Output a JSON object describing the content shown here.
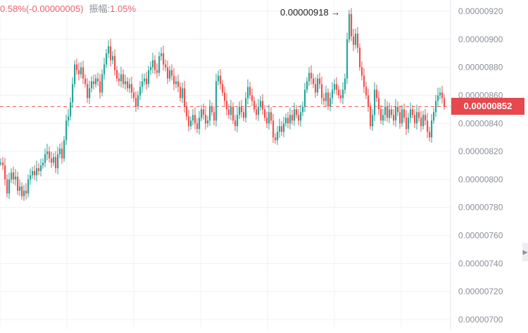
{
  "header": {
    "change_text": "0.58%(-0.00000005)",
    "amplitude_label": "振幅:",
    "amplitude_value": "1.05%"
  },
  "price_tag": {
    "label": "0.00000852",
    "value": 8.52e-06
  },
  "high_annotation": {
    "label": "0.00000918 →",
    "value": 9.18e-06
  },
  "colors": {
    "up": "#26a69a",
    "down": "#ef5350",
    "price_line": "#ef5350",
    "grid": "#eef0f3",
    "axis_text": "#8a8f99"
  },
  "icons": {
    "scroll": "chevron-right-icon"
  },
  "chart_data": {
    "type": "candlestick",
    "title": "",
    "ylim": [
      6.93e-06,
      9.28e-06
    ],
    "y_ticks": [
      "0.00000920",
      "0.00000900",
      "0.00000880",
      "0.00000860",
      "0.00000840",
      "0.00000820",
      "0.00000800",
      "0.00000780",
      "0.00000760",
      "0.00000740",
      "0.00000720",
      "0.00000700"
    ],
    "current_price": 8.52e-06,
    "close_path": [
      [
        0,
        812
      ],
      [
        3,
        810
      ],
      [
        6,
        800
      ],
      [
        9,
        790
      ],
      [
        12,
        800
      ],
      [
        15,
        805
      ],
      [
        18,
        800
      ],
      [
        21,
        802
      ],
      [
        24,
        792
      ],
      [
        27,
        795
      ],
      [
        30,
        788
      ],
      [
        33,
        792
      ],
      [
        36,
        790
      ],
      [
        39,
        800
      ],
      [
        42,
        803
      ],
      [
        45,
        806
      ],
      [
        48,
        803
      ],
      [
        51,
        808
      ],
      [
        54,
        806
      ],
      [
        57,
        810
      ],
      [
        60,
        812
      ],
      [
        63,
        818
      ],
      [
        66,
        820
      ],
      [
        69,
        815
      ],
      [
        72,
        812
      ],
      [
        75,
        816
      ],
      [
        78,
        808
      ],
      [
        81,
        818
      ],
      [
        84,
        822
      ],
      [
        87,
        815
      ],
      [
        90,
        828
      ],
      [
        93,
        842
      ],
      [
        96,
        845
      ],
      [
        99,
        855
      ],
      [
        102,
        868
      ],
      [
        105,
        882
      ],
      [
        108,
        878
      ],
      [
        111,
        875
      ],
      [
        114,
        880
      ],
      [
        117,
        872
      ],
      [
        120,
        868
      ],
      [
        123,
        858
      ],
      [
        126,
        865
      ],
      [
        129,
        870
      ],
      [
        132,
        868
      ],
      [
        135,
        872
      ],
      [
        138,
        870
      ],
      [
        141,
        862
      ],
      [
        144,
        875
      ],
      [
        147,
        882
      ],
      [
        150,
        890
      ],
      [
        153,
        895
      ],
      [
        156,
        885
      ],
      [
        159,
        888
      ],
      [
        162,
        878
      ],
      [
        165,
        872
      ],
      [
        168,
        870
      ],
      [
        171,
        875
      ],
      [
        174,
        868
      ],
      [
        177,
        870
      ],
      [
        180,
        865
      ],
      [
        183,
        868
      ],
      [
        186,
        862
      ],
      [
        189,
        858
      ],
      [
        192,
        852
      ],
      [
        195,
        860
      ],
      [
        198,
        866
      ],
      [
        201,
        870
      ],
      [
        204,
        872
      ],
      [
        207,
        868
      ],
      [
        210,
        878
      ],
      [
        213,
        880
      ],
      [
        216,
        885
      ],
      [
        219,
        878
      ],
      [
        222,
        876
      ],
      [
        225,
        888
      ],
      [
        228,
        890
      ],
      [
        231,
        882
      ],
      [
        234,
        880
      ],
      [
        237,
        872
      ],
      [
        240,
        878
      ],
      [
        243,
        874
      ],
      [
        246,
        868
      ],
      [
        249,
        870
      ],
      [
        252,
        866
      ],
      [
        255,
        858
      ],
      [
        258,
        865
      ],
      [
        261,
        852
      ],
      [
        264,
        845
      ],
      [
        267,
        838
      ],
      [
        270,
        842
      ],
      [
        273,
        846
      ],
      [
        276,
        840
      ],
      [
        279,
        836
      ],
      [
        282,
        844
      ],
      [
        285,
        850
      ],
      [
        288,
        846
      ],
      [
        291,
        840
      ],
      [
        294,
        842
      ],
      [
        297,
        852
      ],
      [
        300,
        848
      ],
      [
        303,
        842
      ],
      [
        306,
        870
      ],
      [
        309,
        874
      ],
      [
        312,
        868
      ],
      [
        315,
        862
      ],
      [
        318,
        856
      ],
      [
        321,
        850
      ],
      [
        324,
        846
      ],
      [
        327,
        852
      ],
      [
        330,
        842
      ],
      [
        333,
        838
      ],
      [
        336,
        846
      ],
      [
        339,
        852
      ],
      [
        342,
        848
      ],
      [
        345,
        844
      ],
      [
        348,
        858
      ],
      [
        351,
        866
      ],
      [
        354,
        860
      ],
      [
        357,
        856
      ],
      [
        360,
        850
      ],
      [
        363,
        846
      ],
      [
        366,
        852
      ],
      [
        369,
        856
      ],
      [
        372,
        850
      ],
      [
        375,
        844
      ],
      [
        378,
        840
      ],
      [
        381,
        848
      ],
      [
        384,
        842
      ],
      [
        387,
        830
      ],
      [
        390,
        828
      ],
      [
        393,
        834
      ],
      [
        396,
        838
      ],
      [
        399,
        834
      ],
      [
        402,
        840
      ],
      [
        405,
        844
      ],
      [
        408,
        840
      ],
      [
        411,
        846
      ],
      [
        414,
        842
      ],
      [
        417,
        850
      ],
      [
        420,
        846
      ],
      [
        423,
        842
      ],
      [
        426,
        848
      ],
      [
        429,
        852
      ],
      [
        432,
        864
      ],
      [
        435,
        870
      ],
      [
        438,
        876
      ],
      [
        441,
        872
      ],
      [
        444,
        868
      ],
      [
        447,
        862
      ],
      [
        450,
        872
      ],
      [
        453,
        868
      ],
      [
        456,
        858
      ],
      [
        459,
        856
      ],
      [
        462,
        862
      ],
      [
        465,
        852
      ],
      [
        468,
        858
      ],
      [
        471,
        864
      ],
      [
        474,
        868
      ],
      [
        477,
        864
      ],
      [
        480,
        860
      ],
      [
        483,
        858
      ],
      [
        486,
        864
      ],
      [
        489,
        872
      ],
      [
        492,
        900
      ],
      [
        495,
        918
      ],
      [
        498,
        902
      ],
      [
        501,
        896
      ],
      [
        504,
        904
      ],
      [
        507,
        894
      ],
      [
        510,
        880
      ],
      [
        513,
        874
      ],
      [
        516,
        866
      ],
      [
        519,
        860
      ],
      [
        522,
        852
      ],
      [
        525,
        838
      ],
      [
        528,
        846
      ],
      [
        531,
        864
      ],
      [
        534,
        858
      ],
      [
        537,
        850
      ],
      [
        540,
        842
      ],
      [
        543,
        846
      ],
      [
        546,
        852
      ],
      [
        549,
        844
      ],
      [
        552,
        850
      ],
      [
        555,
        846
      ],
      [
        558,
        842
      ],
      [
        561,
        852
      ],
      [
        564,
        848
      ],
      [
        567,
        840
      ],
      [
        570,
        850
      ],
      [
        573,
        844
      ],
      [
        576,
        836
      ],
      [
        579,
        844
      ],
      [
        582,
        850
      ],
      [
        585,
        846
      ],
      [
        588,
        840
      ],
      [
        591,
        848
      ],
      [
        594,
        844
      ],
      [
        597,
        838
      ],
      [
        600,
        846
      ],
      [
        603,
        842
      ],
      [
        606,
        834
      ],
      [
        609,
        830
      ],
      [
        612,
        842
      ],
      [
        615,
        848
      ],
      [
        618,
        856
      ],
      [
        621,
        860
      ],
      [
        624,
        862
      ],
      [
        627,
        858
      ],
      [
        630,
        852
      ]
    ]
  }
}
